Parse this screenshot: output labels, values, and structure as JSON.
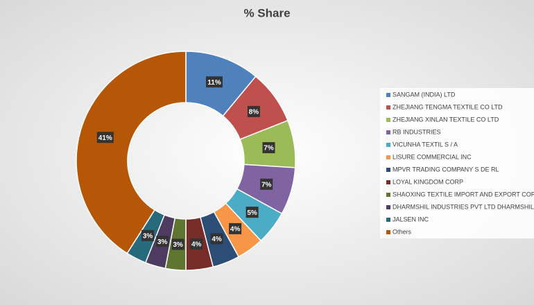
{
  "chart_data": {
    "type": "donut",
    "title": "% Share",
    "categories": [
      "SANGAM (INDIA) LTD",
      "ZHEJIANG TENGMA TEXTILE CO LTD",
      "ZHEJIANG XINLAN TEXTILE CO LTD",
      "RB INDUSTRIES",
      "VICUNHA TEXTIL S / A",
      "LISURE COMMERCIAL INC",
      "MPVR TRADING COMPANY S DE RL",
      "LOYAL KINGDOM CORP",
      "SHAOXING TEXTILE IMPORT AND EXPORT CORP",
      "DHARMSHIL INDUSTRIES PVT LTD DHARMSHIL HOUS",
      "JALSEN INC",
      "Others"
    ],
    "values": [
      11,
      8,
      7,
      7,
      5,
      4,
      4,
      4,
      3,
      3,
      3,
      41
    ],
    "value_labels": [
      "11%",
      "8%",
      "7%",
      "7%",
      "5%",
      "4%",
      "4%",
      "4%",
      "3%",
      "3%",
      "3%",
      "41%"
    ],
    "colors": [
      "#4f81bd",
      "#c0504d",
      "#9bbb59",
      "#8064a2",
      "#4bacc6",
      "#f79646",
      "#2c4d75",
      "#772c2a",
      "#5f7530",
      "#4d3b62",
      "#276a7c",
      "#b65708"
    ],
    "legend": "right"
  }
}
